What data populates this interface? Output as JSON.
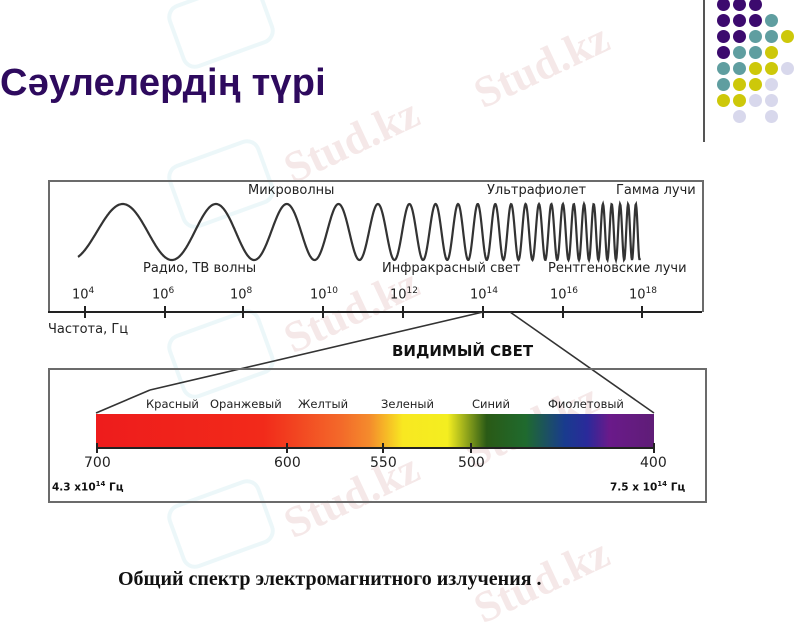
{
  "slide": {
    "title": "Сәулелердің түрі",
    "caption": "Общий спектр электромагнитного излучения  ."
  },
  "decoration": {
    "dot_colors": {
      "purple": "#3c0a6e",
      "teal": "#5f9ea0",
      "yellow": "#cdc80a",
      "lavender": "#d8d8ec"
    },
    "watermark_text": "Stud.kz"
  },
  "diagram": {
    "top_panel": {
      "labels_top": {
        "microwaves": "Микроволны",
        "ultraviolet": "Ультрафиолет",
        "gamma": "Гамма лучи"
      },
      "labels_bottom": {
        "radio": "Радио, ТВ волны",
        "infrared": "Инфракрасный свет",
        "xray": "Рентгеновские лучи"
      },
      "axis_ticks": [
        {
          "base": "10",
          "exp": "4"
        },
        {
          "base": "10",
          "exp": "6"
        },
        {
          "base": "10",
          "exp": "8"
        },
        {
          "base": "10",
          "exp": "10"
        },
        {
          "base": "10",
          "exp": "12"
        },
        {
          "base": "10",
          "exp": "14"
        },
        {
          "base": "10",
          "exp": "16"
        },
        {
          "base": "10",
          "exp": "18"
        }
      ],
      "axis_label": "Частота, Гц"
    },
    "visible_heading": "ВИДИМЫЙ СВЕТ",
    "bottom_panel": {
      "colors": [
        "Красный",
        "Оранжевый",
        "Желтый",
        "Зеленый",
        "Синий",
        "Фиолетовый"
      ],
      "wavelength_ticks": [
        "700",
        "600",
        "550",
        "500",
        "400"
      ],
      "freq_left": {
        "base": "4.3 x10",
        "exp": "14",
        "unit": " Гц"
      },
      "freq_right": {
        "base": "7.5 x 10",
        "exp": "14",
        "unit": " Гц"
      }
    }
  },
  "chart_data": {
    "type": "diagram",
    "title": "Общий спектр электромагнитного излучения",
    "frequency_axis": {
      "label": "Частота, Гц",
      "ticks_log10_hz": [
        4,
        6,
        8,
        10,
        12,
        14,
        16,
        18
      ]
    },
    "bands": [
      "Радио, ТВ волны",
      "Микроволны",
      "Инфракрасный свет",
      "Ультрафиолет",
      "Рентгеновские лучи",
      "Гамма лучи"
    ],
    "visible_light": {
      "label": "ВИДИМЫЙ СВЕТ",
      "wavelength_nm_ticks": [
        700,
        600,
        550,
        500,
        400
      ],
      "colors": [
        "Красный",
        "Оранжевый",
        "Желтый",
        "Зеленый",
        "Синий",
        "Фиолетовый"
      ],
      "frequency_range": [
        "4.3 x10^14 Гц",
        "7.5 x 10^14 Гц"
      ]
    }
  }
}
